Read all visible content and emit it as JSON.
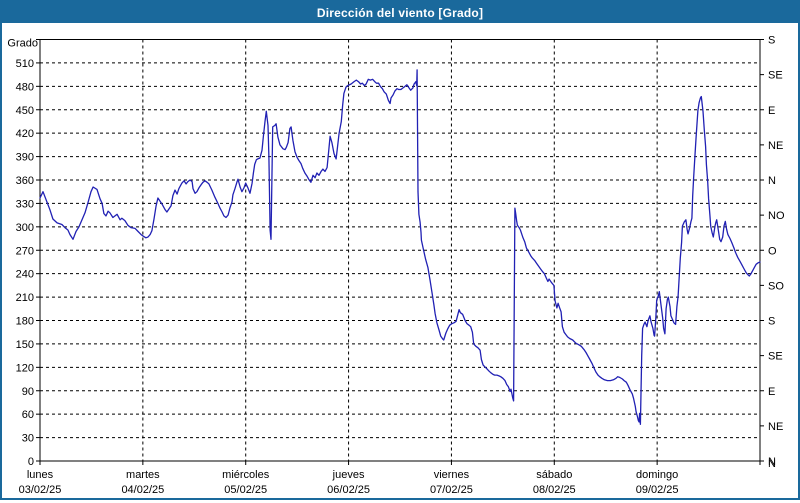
{
  "window": {
    "title": "Dirección del viento [Grado]",
    "titlebar_color": "#1A699C",
    "border_color": "#1A699C",
    "background": "#FFFFFF"
  },
  "chart_data": {
    "type": "line",
    "title": "Dirección del viento [Grado]",
    "ylabel": "Grado",
    "xlabel": "",
    "line_color": "#2121B4",
    "grid_color": "#000000",
    "grid": "on",
    "y_axis": {
      "min": 0,
      "max": 540,
      "tick_step": 30,
      "top_label_hidden": true
    },
    "y_right_axis": {
      "tick_step": 45,
      "labels_bottom_up": [
        "N",
        "NE",
        "E",
        "SE",
        "S",
        "SO",
        "O",
        "NO",
        "N",
        "NE",
        "E",
        "SE",
        "S"
      ]
    },
    "x_axis_days": [
      {
        "name": "lunes",
        "date": "03/02/25"
      },
      {
        "name": "martes",
        "date": "04/02/25"
      },
      {
        "name": "miércoles",
        "date": "05/02/25"
      },
      {
        "name": "jueves",
        "date": "06/02/25"
      },
      {
        "name": "viernes",
        "date": "07/02/25"
      },
      {
        "name": "sábado",
        "date": "08/02/25"
      },
      {
        "name": "domingo",
        "date": "09/02/25"
      }
    ],
    "x_range_hours": [
      0,
      168
    ],
    "bottom_right_label": "N",
    "points": [
      [
        0,
        337
      ],
      [
        0.7,
        345
      ],
      [
        1.6,
        332
      ],
      [
        2.3,
        322
      ],
      [
        3,
        310
      ],
      [
        4,
        305
      ],
      [
        5.1,
        303
      ],
      [
        5.8,
        299
      ],
      [
        6.5,
        296
      ],
      [
        7,
        290
      ],
      [
        7.7,
        284
      ],
      [
        8.4,
        294
      ],
      [
        9.1,
        300
      ],
      [
        9.8,
        309
      ],
      [
        10.5,
        318
      ],
      [
        11.2,
        331
      ],
      [
        11.9,
        345
      ],
      [
        12.4,
        351
      ],
      [
        13.3,
        348
      ],
      [
        14,
        336
      ],
      [
        14.5,
        330
      ],
      [
        14.9,
        317
      ],
      [
        15.4,
        314
      ],
      [
        15.9,
        320
      ],
      [
        16.3,
        318
      ],
      [
        17,
        312
      ],
      [
        17.5,
        314
      ],
      [
        18,
        316
      ],
      [
        18.7,
        309
      ],
      [
        19.1,
        311
      ],
      [
        19.8,
        308
      ],
      [
        20.5,
        302
      ],
      [
        21.2,
        299
      ],
      [
        22.2,
        298
      ],
      [
        22.9,
        294
      ],
      [
        23.6,
        290
      ],
      [
        24.1,
        288
      ],
      [
        24.7,
        286
      ],
      [
        25.2,
        287
      ],
      [
        25.7,
        290
      ],
      [
        26.1,
        295
      ],
      [
        26.6,
        310
      ],
      [
        27.1,
        327
      ],
      [
        27.5,
        337
      ],
      [
        28,
        333
      ],
      [
        28.5,
        329
      ],
      [
        29.2,
        322
      ],
      [
        29.6,
        319
      ],
      [
        30.1,
        323
      ],
      [
        30.6,
        327
      ],
      [
        31,
        340
      ],
      [
        31.5,
        347
      ],
      [
        32,
        342
      ],
      [
        32.4,
        349
      ],
      [
        33.1,
        356
      ],
      [
        33.6,
        359
      ],
      [
        34.1,
        355
      ],
      [
        34.5,
        358
      ],
      [
        35,
        360
      ],
      [
        35.5,
        358
      ],
      [
        35.7,
        349
      ],
      [
        36.2,
        343
      ],
      [
        36.6,
        345
      ],
      [
        37.1,
        350
      ],
      [
        37.6,
        354
      ],
      [
        38,
        357
      ],
      [
        38.5,
        359
      ],
      [
        39,
        357
      ],
      [
        39.4,
        355
      ],
      [
        40.1,
        347
      ],
      [
        40.8,
        338
      ],
      [
        41.5,
        330
      ],
      [
        42,
        324
      ],
      [
        42.5,
        319
      ],
      [
        42.9,
        314
      ],
      [
        43.4,
        312
      ],
      [
        43.9,
        315
      ],
      [
        44.3,
        324
      ],
      [
        44.8,
        332
      ],
      [
        45,
        341
      ],
      [
        45.5,
        349
      ],
      [
        46,
        358
      ],
      [
        46.2,
        361
      ],
      [
        46.7,
        351
      ],
      [
        47.1,
        345
      ],
      [
        47.6,
        350
      ],
      [
        48,
        356
      ],
      [
        48.5,
        350
      ],
      [
        49,
        343
      ],
      [
        49.5,
        356
      ],
      [
        49.8,
        369
      ],
      [
        50.1,
        380
      ],
      [
        50.5,
        386
      ],
      [
        50.8,
        387
      ],
      [
        51.3,
        388
      ],
      [
        51.8,
        398
      ],
      [
        52.1,
        415
      ],
      [
        52.5,
        435
      ],
      [
        52.8,
        448
      ],
      [
        53.2,
        430
      ],
      [
        53.4,
        390
      ],
      [
        53.7,
        296
      ],
      [
        53.9,
        284
      ],
      [
        54.3,
        428
      ],
      [
        54.8,
        430
      ],
      [
        55.1,
        432
      ],
      [
        55.5,
        415
      ],
      [
        56,
        405
      ],
      [
        56.7,
        400
      ],
      [
        57.2,
        399
      ],
      [
        57.5,
        402
      ],
      [
        57.9,
        408
      ],
      [
        58.3,
        426
      ],
      [
        58.6,
        428
      ],
      [
        59,
        411
      ],
      [
        59.5,
        396
      ],
      [
        60,
        389
      ],
      [
        60.4,
        385
      ],
      [
        60.9,
        381
      ],
      [
        61.3,
        375
      ],
      [
        61.8,
        369
      ],
      [
        62.3,
        365
      ],
      [
        62.7,
        361
      ],
      [
        63.2,
        357
      ],
      [
        63.7,
        366
      ],
      [
        64.2,
        363
      ],
      [
        64.6,
        369
      ],
      [
        65.1,
        366
      ],
      [
        65.6,
        371
      ],
      [
        66,
        374
      ],
      [
        66.5,
        371
      ],
      [
        67,
        376
      ],
      [
        67.4,
        400
      ],
      [
        67.7,
        416
      ],
      [
        68.1,
        408
      ],
      [
        68.6,
        394
      ],
      [
        69.1,
        387
      ],
      [
        69.4,
        401
      ],
      [
        69.8,
        420
      ],
      [
        70.3,
        435
      ],
      [
        70.6,
        455
      ],
      [
        70.9,
        471
      ],
      [
        71.4,
        479
      ],
      [
        71.8,
        481
      ],
      [
        72.6,
        483
      ],
      [
        73.3,
        486
      ],
      [
        73.8,
        488
      ],
      [
        74.3,
        486
      ],
      [
        74.8,
        483
      ],
      [
        75.2,
        484
      ],
      [
        75.7,
        481
      ],
      [
        76.1,
        483
      ],
      [
        76.6,
        489
      ],
      [
        77.1,
        488
      ],
      [
        77.6,
        489
      ],
      [
        78.1,
        486
      ],
      [
        78.5,
        484
      ],
      [
        79,
        484
      ],
      [
        79.4,
        480
      ],
      [
        79.9,
        477
      ],
      [
        80.3,
        473
      ],
      [
        80.8,
        470
      ],
      [
        81.3,
        462
      ],
      [
        81.7,
        458
      ],
      [
        81.9,
        465
      ],
      [
        82.4,
        469
      ],
      [
        82.8,
        474
      ],
      [
        83.3,
        477
      ],
      [
        83.7,
        476
      ],
      [
        84.2,
        476
      ],
      [
        84.7,
        478
      ],
      [
        85.2,
        480
      ],
      [
        85.6,
        482
      ],
      [
        86.1,
        478
      ],
      [
        86.5,
        475
      ],
      [
        87,
        478
      ],
      [
        87.3,
        483
      ],
      [
        87.7,
        486
      ],
      [
        87.9,
        481
      ],
      [
        88,
        501
      ],
      [
        88.2,
        345
      ],
      [
        88.4,
        316
      ],
      [
        88.7,
        306
      ],
      [
        88.9,
        293
      ],
      [
        89,
        283
      ],
      [
        89.5,
        270
      ],
      [
        90,
        258
      ],
      [
        90.5,
        248
      ],
      [
        91,
        232
      ],
      [
        91.5,
        215
      ],
      [
        91.9,
        200
      ],
      [
        92.2,
        189
      ],
      [
        92.6,
        177
      ],
      [
        93.1,
        168
      ],
      [
        93.5,
        160
      ],
      [
        94,
        156
      ],
      [
        94.2,
        155
      ],
      [
        94.7,
        164
      ],
      [
        95.1,
        169
      ],
      [
        95.6,
        174
      ],
      [
        96.1,
        176
      ],
      [
        96.6,
        177
      ],
      [
        97.1,
        179
      ],
      [
        97.5,
        188
      ],
      [
        97.8,
        194
      ],
      [
        98.1,
        190
      ],
      [
        98.6,
        188
      ],
      [
        99.2,
        180
      ],
      [
        99.6,
        176
      ],
      [
        100.1,
        174
      ],
      [
        100.5,
        172
      ],
      [
        100.9,
        165
      ],
      [
        101.2,
        150
      ],
      [
        101.7,
        147
      ],
      [
        102.2,
        145
      ],
      [
        102.7,
        142
      ],
      [
        103,
        130
      ],
      [
        103.4,
        123
      ],
      [
        103.9,
        120
      ],
      [
        104.3,
        118
      ],
      [
        104.8,
        115
      ],
      [
        105.2,
        113
      ],
      [
        105.7,
        111
      ],
      [
        106.1,
        110
      ],
      [
        106.6,
        110
      ],
      [
        107.1,
        109
      ],
      [
        107.5,
        108
      ],
      [
        108,
        106
      ],
      [
        108.5,
        103
      ],
      [
        108.9,
        98
      ],
      [
        109.3,
        95
      ],
      [
        109.7,
        89
      ],
      [
        109.9,
        92
      ],
      [
        110.3,
        81
      ],
      [
        110.5,
        77
      ],
      [
        110.8,
        324
      ],
      [
        111,
        317
      ],
      [
        111.2,
        308
      ],
      [
        111.4,
        302
      ],
      [
        111.8,
        299
      ],
      [
        112.1,
        296
      ],
      [
        112.4,
        291
      ],
      [
        112.7,
        286
      ],
      [
        113.1,
        281
      ],
      [
        113.5,
        273
      ],
      [
        114,
        268
      ],
      [
        114.5,
        263
      ],
      [
        114.9,
        260
      ],
      [
        115.4,
        257
      ],
      [
        115.9,
        253
      ],
      [
        116.3,
        250
      ],
      [
        116.8,
        246
      ],
      [
        117.2,
        243
      ],
      [
        117.7,
        240
      ],
      [
        118.1,
        235
      ],
      [
        118.5,
        230
      ],
      [
        118.8,
        233
      ],
      [
        119.3,
        229
      ],
      [
        119.9,
        225
      ],
      [
        120.2,
        205
      ],
      [
        120.6,
        196
      ],
      [
        120.9,
        202
      ],
      [
        121.2,
        197
      ],
      [
        121.6,
        191
      ],
      [
        121.9,
        172
      ],
      [
        122.3,
        165
      ],
      [
        122.7,
        162
      ],
      [
        123.1,
        159
      ],
      [
        123.6,
        157
      ],
      [
        124.3,
        155
      ],
      [
        125,
        151
      ],
      [
        125.7,
        149
      ],
      [
        126.3,
        147
      ],
      [
        126.9,
        143
      ],
      [
        127.4,
        139
      ],
      [
        127.8,
        135
      ],
      [
        128.3,
        130
      ],
      [
        128.8,
        125
      ],
      [
        129.2,
        120
      ],
      [
        129.7,
        114
      ],
      [
        130.2,
        110
      ],
      [
        130.6,
        108
      ],
      [
        131.1,
        106
      ],
      [
        131.7,
        104
      ],
      [
        132.4,
        103
      ],
      [
        133.1,
        103
      ],
      [
        133.8,
        104
      ],
      [
        134.4,
        106
      ],
      [
        134.8,
        108
      ],
      [
        135.3,
        107
      ],
      [
        135.9,
        105
      ],
      [
        136.3,
        103
      ],
      [
        136.8,
        101
      ],
      [
        137.2,
        97
      ],
      [
        137.7,
        91
      ],
      [
        138.2,
        86
      ],
      [
        138.5,
        80
      ],
      [
        138.9,
        70
      ],
      [
        139.1,
        63
      ],
      [
        139.4,
        57
      ],
      [
        139.6,
        52
      ],
      [
        139.8,
        50
      ],
      [
        139.9,
        61
      ],
      [
        140.1,
        47
      ],
      [
        140.4,
        135
      ],
      [
        140.6,
        170
      ],
      [
        140.9,
        175
      ],
      [
        141.2,
        178
      ],
      [
        141.6,
        172
      ],
      [
        141.9,
        180
      ],
      [
        142.3,
        186
      ],
      [
        142.6,
        178
      ],
      [
        143,
        170
      ],
      [
        143.3,
        161
      ],
      [
        143.4,
        160
      ],
      [
        143.7,
        185
      ],
      [
        143.9,
        206
      ],
      [
        144.3,
        212
      ],
      [
        144.5,
        217
      ],
      [
        144.9,
        200
      ],
      [
        145.3,
        183
      ],
      [
        145.5,
        170
      ],
      [
        145.8,
        163
      ],
      [
        146.1,
        195
      ],
      [
        146.4,
        207
      ],
      [
        146.6,
        210
      ],
      [
        147,
        198
      ],
      [
        147.2,
        186
      ],
      [
        147.6,
        181
      ],
      [
        147.9,
        177
      ],
      [
        148.3,
        175
      ],
      [
        148.6,
        198
      ],
      [
        148.9,
        211
      ],
      [
        149.2,
        240
      ],
      [
        149.4,
        260
      ],
      [
        149.7,
        280
      ],
      [
        149.9,
        301
      ],
      [
        150.3,
        306
      ],
      [
        150.7,
        309
      ],
      [
        151,
        297
      ],
      [
        151.2,
        291
      ],
      [
        151.6,
        299
      ],
      [
        151.9,
        307
      ],
      [
        152.1,
        311
      ],
      [
        152.3,
        340
      ],
      [
        152.5,
        362
      ],
      [
        152.8,
        390
      ],
      [
        153.1,
        415
      ],
      [
        153.3,
        432
      ],
      [
        153.5,
        449
      ],
      [
        153.8,
        459
      ],
      [
        154.1,
        465
      ],
      [
        154.3,
        467
      ],
      [
        154.7,
        448
      ],
      [
        155,
        424
      ],
      [
        155.3,
        403
      ],
      [
        155.5,
        380
      ],
      [
        155.8,
        358
      ],
      [
        156,
        336
      ],
      [
        156.3,
        315
      ],
      [
        156.5,
        301
      ],
      [
        156.8,
        293
      ],
      [
        157.1,
        287
      ],
      [
        157.5,
        301
      ],
      [
        157.7,
        306
      ],
      [
        157.9,
        309
      ],
      [
        158.3,
        295
      ],
      [
        158.6,
        284
      ],
      [
        158.9,
        281
      ],
      [
        159.3,
        287
      ],
      [
        159.6,
        301
      ],
      [
        159.9,
        307
      ],
      [
        160.2,
        297
      ],
      [
        160.5,
        290
      ],
      [
        161,
        285
      ],
      [
        161.4,
        280
      ],
      [
        161.9,
        273
      ],
      [
        162.3,
        267
      ],
      [
        162.8,
        261
      ],
      [
        163.3,
        256
      ],
      [
        163.8,
        251
      ],
      [
        164.3,
        246
      ],
      [
        164.8,
        241
      ],
      [
        165.3,
        238
      ],
      [
        165.5,
        237
      ],
      [
        165.9,
        240
      ],
      [
        166.2,
        243
      ],
      [
        166.7,
        248
      ],
      [
        167.1,
        252
      ],
      [
        167.6,
        254
      ],
      [
        168,
        255
      ]
    ]
  }
}
